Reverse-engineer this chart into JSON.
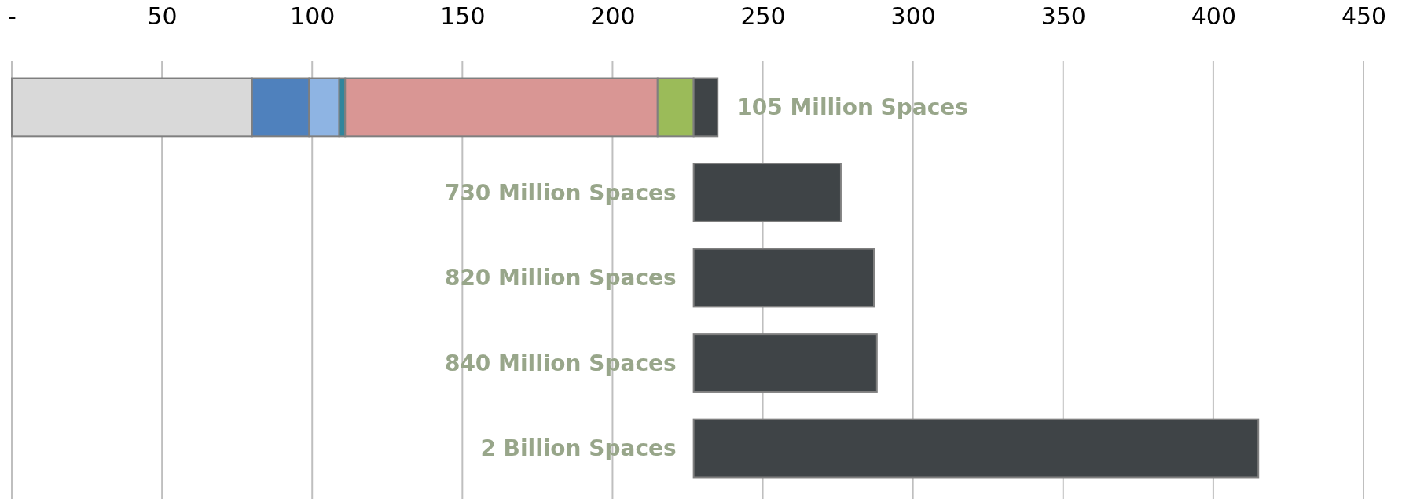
{
  "chart_data": {
    "type": "bar",
    "orientation": "horizontal",
    "stacked": true,
    "categories": [
      "105 Million Spaces",
      "730 Million Spaces",
      "820 Million Spaces",
      "840 Million Spaces",
      "2 Billion Spaces"
    ],
    "series": [
      {
        "color": "#d9d9d9",
        "values": [
          80,
          null,
          null,
          null,
          null
        ]
      },
      {
        "color": "#4f81bd",
        "values": [
          19,
          null,
          null,
          null,
          null
        ]
      },
      {
        "color": "#8eb4e3",
        "values": [
          10,
          null,
          null,
          null,
          null
        ]
      },
      {
        "color": "#31859c",
        "values": [
          2,
          null,
          null,
          null,
          null
        ]
      },
      {
        "color": "#d99694",
        "values": [
          104,
          null,
          null,
          null,
          null
        ]
      },
      {
        "color": "#9bbb59",
        "values": [
          12,
          null,
          null,
          null,
          null
        ]
      },
      {
        "color": "#3f4447",
        "values": [
          8,
          49,
          60,
          61,
          188
        ],
        "base": [
          null,
          227,
          227,
          227,
          227
        ]
      }
    ],
    "xlim": [
      0,
      450
    ],
    "xticks": [
      {
        "value": 0,
        "label": "-"
      },
      50,
      100,
      150,
      200,
      250,
      300,
      350,
      400,
      450
    ],
    "grid": "x"
  }
}
